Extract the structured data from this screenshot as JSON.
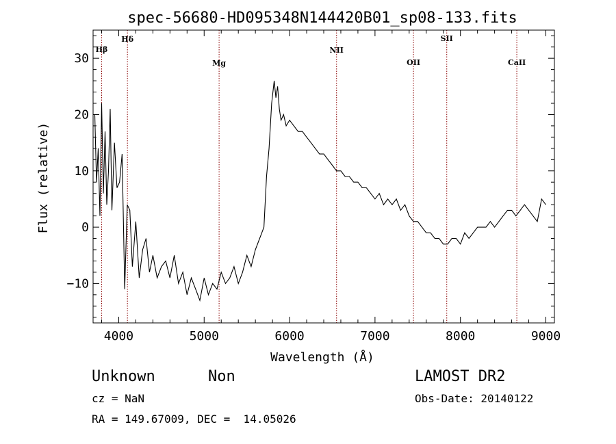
{
  "chart_data": {
    "type": "line",
    "title": "spec-56680-HD095348N144420B01_sp08-133.fits",
    "xlabel": "Wavelength (Å)",
    "ylabel": "Flux (relative)",
    "xlim": [
      3700,
      9100
    ],
    "ylim": [
      -17,
      35
    ],
    "x_ticks": [
      4000,
      5000,
      6000,
      7000,
      8000,
      9000
    ],
    "y_ticks": [
      -10,
      0,
      10,
      20,
      30
    ],
    "grid": false,
    "series": [
      {
        "x": [
          3720,
          3740,
          3760,
          3780,
          3800,
          3820,
          3840,
          3860,
          3880,
          3900,
          3920,
          3950,
          3980,
          4010,
          4040,
          4070,
          4100,
          4130,
          4160,
          4200,
          4240,
          4280,
          4320,
          4360,
          4400,
          4450,
          4500,
          4550,
          4600,
          4650,
          4700,
          4750,
          4800,
          4850,
          4900,
          4950,
          5000,
          5050,
          5100,
          5150,
          5200,
          5250,
          5300,
          5350,
          5400,
          5450,
          5500,
          5550,
          5600,
          5650,
          5700,
          5730,
          5760,
          5790,
          5820,
          5840,
          5860,
          5880,
          5900,
          5930,
          5960,
          6000,
          6050,
          6100,
          6150,
          6200,
          6250,
          6300,
          6350,
          6400,
          6450,
          6500,
          6550,
          6600,
          6650,
          6700,
          6750,
          6800,
          6850,
          6900,
          6950,
          7000,
          7050,
          7100,
          7150,
          7200,
          7250,
          7300,
          7350,
          7400,
          7450,
          7500,
          7550,
          7600,
          7650,
          7700,
          7750,
          7800,
          7850,
          7900,
          7950,
          8000,
          8050,
          8100,
          8150,
          8200,
          8250,
          8300,
          8350,
          8400,
          8450,
          8500,
          8550,
          8600,
          8650,
          8700,
          8750,
          8800,
          8850,
          8900,
          8950,
          9000
        ],
        "y": [
          20,
          8,
          14,
          2,
          22,
          6,
          17,
          4,
          10,
          21,
          3,
          15,
          7,
          8,
          13,
          -11,
          4,
          3,
          -7,
          1,
          -9,
          -4,
          -2,
          -8,
          -5,
          -9,
          -7,
          -6,
          -9,
          -5,
          -10,
          -8,
          -12,
          -9,
          -11,
          -13,
          -9,
          -12,
          -10,
          -11,
          -8,
          -10,
          -9,
          -7,
          -10,
          -8,
          -5,
          -7,
          -4,
          -2,
          0,
          9,
          14,
          22,
          26,
          23,
          25,
          21,
          19,
          20,
          18,
          19,
          18,
          17,
          17,
          16,
          15,
          14,
          13,
          13,
          12,
          11,
          10,
          10,
          9,
          9,
          8,
          8,
          7,
          7,
          6,
          5,
          6,
          4,
          5,
          4,
          5,
          3,
          4,
          2,
          1,
          1,
          0,
          -1,
          -1,
          -2,
          -2,
          -3,
          -3,
          -2,
          -2,
          -3,
          -1,
          -2,
          -1,
          0,
          0,
          0,
          1,
          0,
          1,
          2,
          3,
          3,
          2,
          3,
          4,
          3,
          2,
          1,
          5,
          4
        ]
      }
    ],
    "line_markers": [
      {
        "label": "Hβ",
        "x": 3800
      },
      {
        "label": "Hδ",
        "x": 4102
      },
      {
        "label": "Mg",
        "x": 5175
      },
      {
        "label": "NII",
        "x": 6550
      },
      {
        "label": "OII",
        "x": 7450
      },
      {
        "label": "SII",
        "x": 7840
      },
      {
        "label": "CaII",
        "x": 8660
      }
    ]
  },
  "info": {
    "class": "Unknown",
    "subclass": "Non",
    "cz": "cz = NaN",
    "coords": "RA = 149.67009, DEC =  14.05026",
    "survey": "LAMOST DR2",
    "obsdate": "Obs-Date: 20140122"
  },
  "colors": {
    "spectrum": "#000000",
    "marker": "#8b0000",
    "axes": "#000000"
  }
}
